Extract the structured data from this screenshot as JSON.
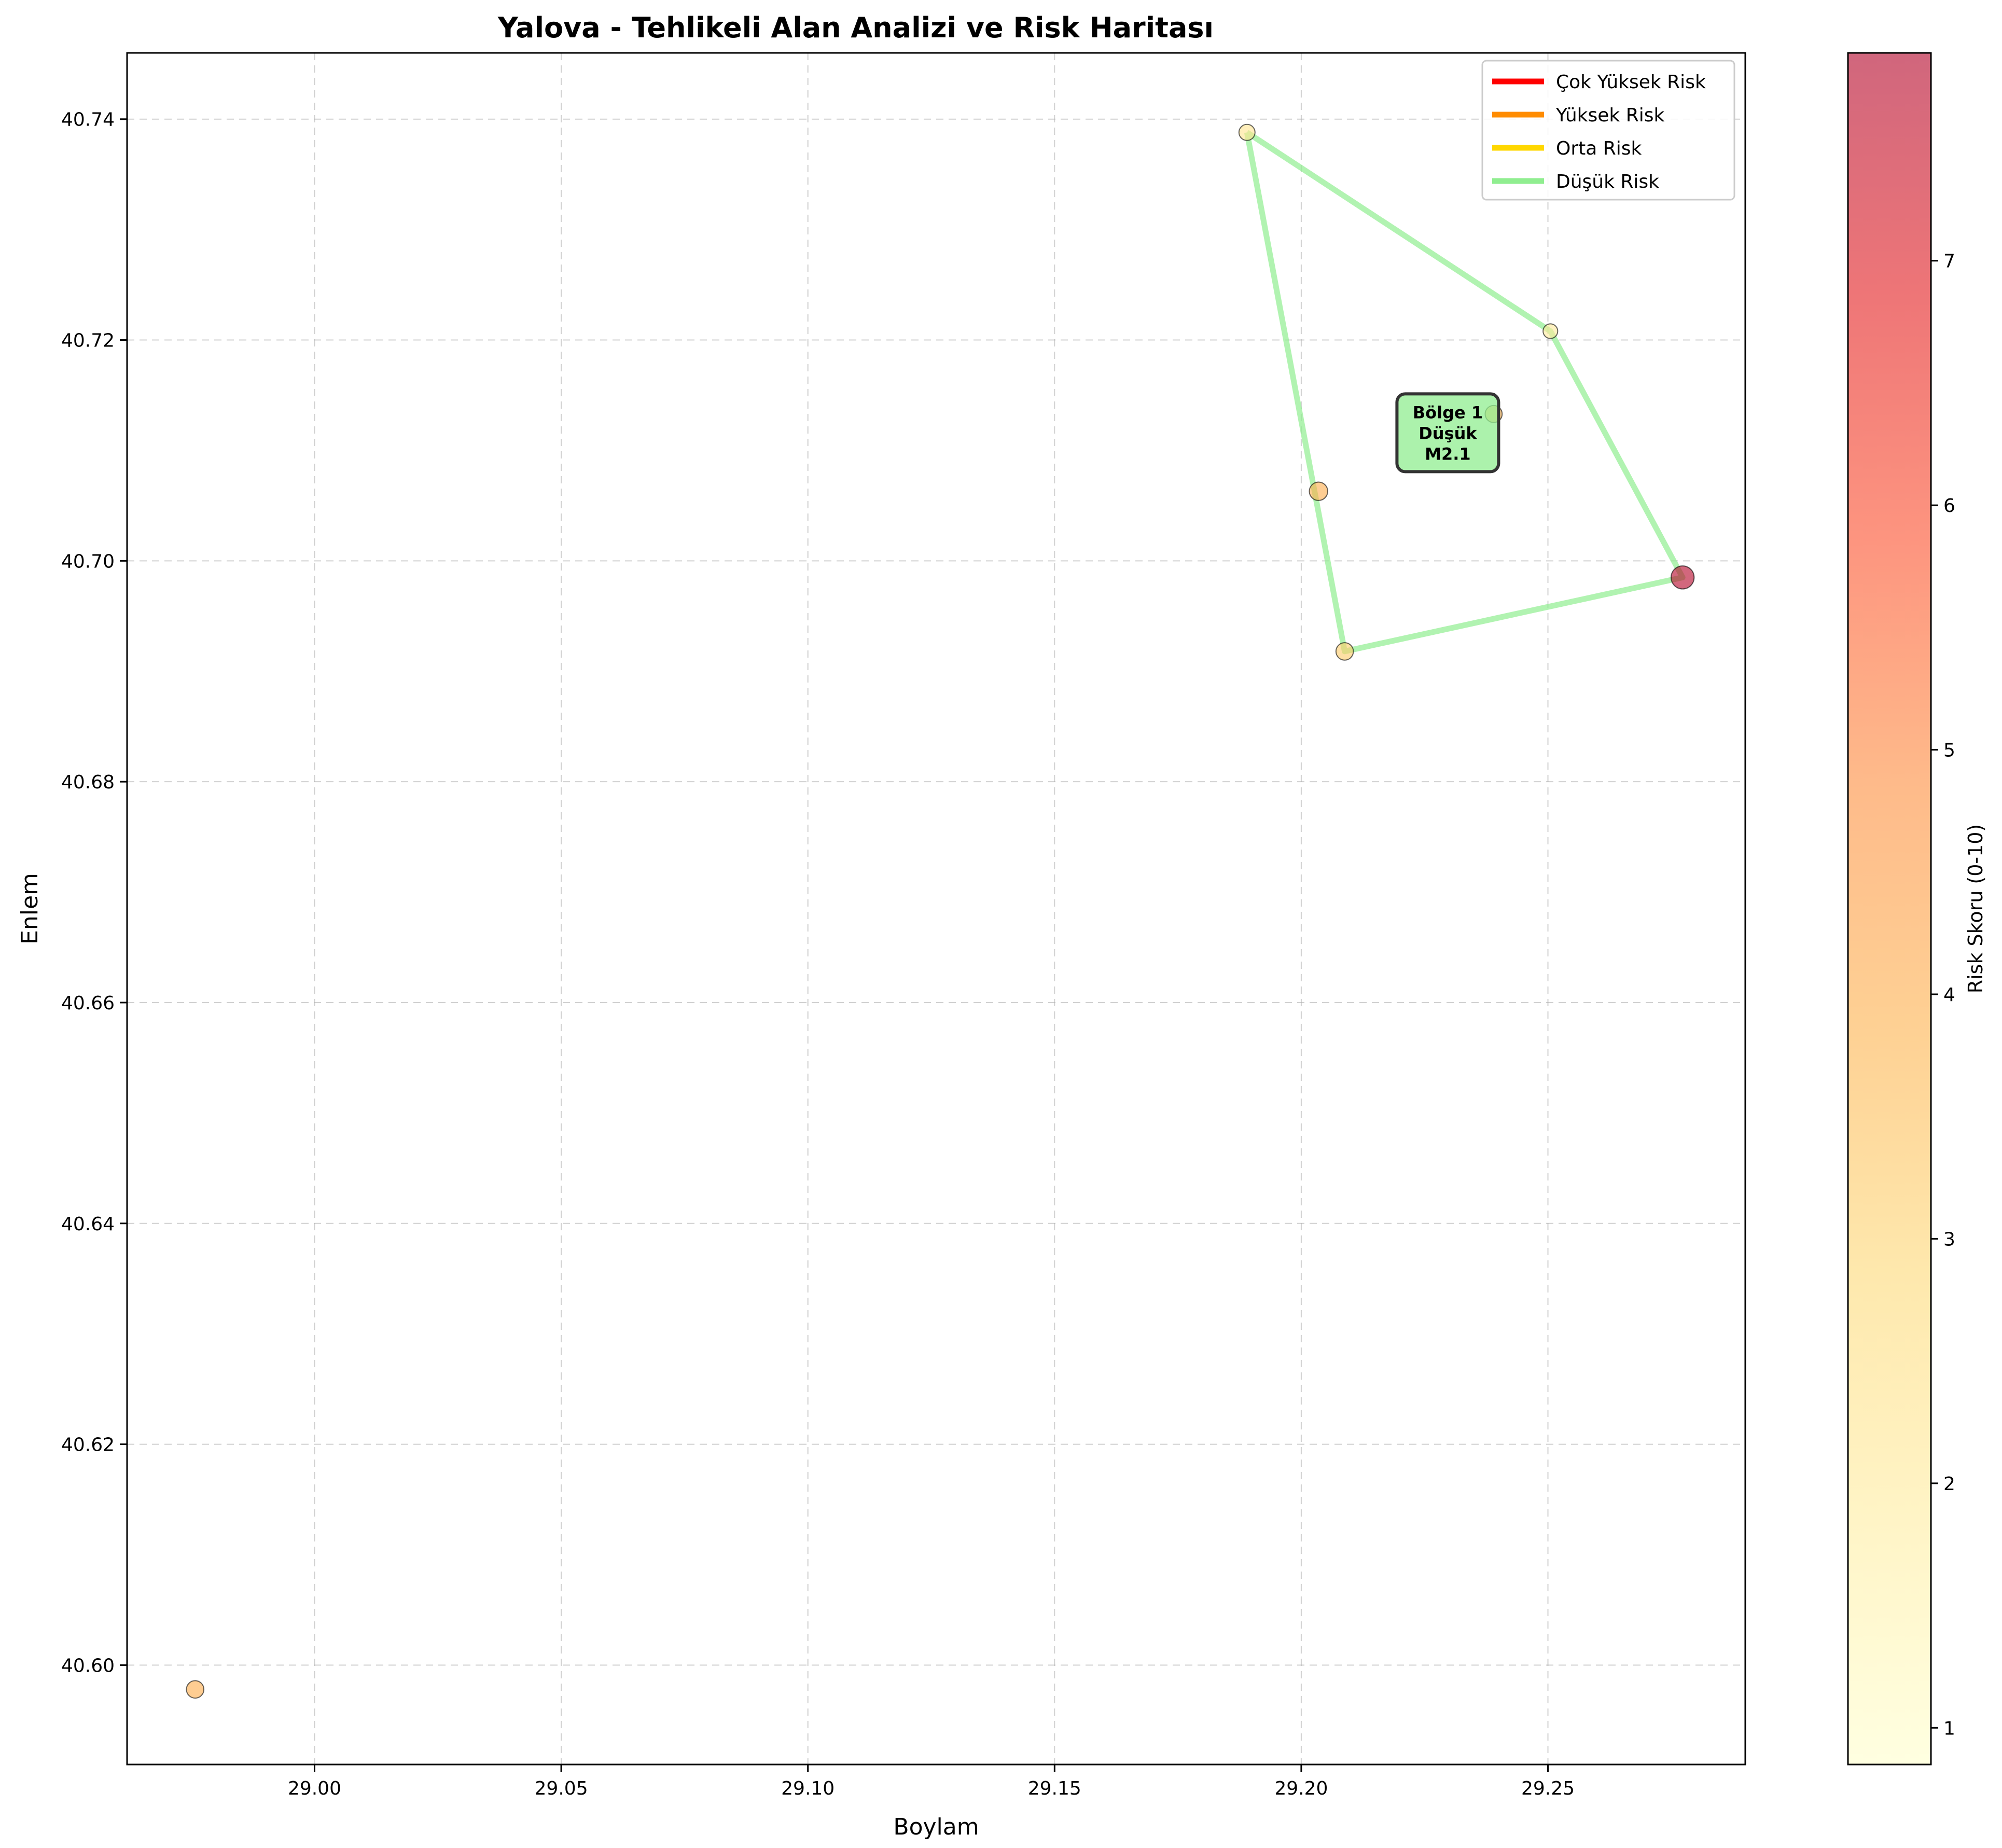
{
  "chart_data": {
    "type": "scatter",
    "title": "Yalova - Tehlikeli Alan Analizi ve Risk Haritası",
    "xlabel": "Boylam",
    "ylabel": "Enlem",
    "xlim": [
      28.962,
      29.29
    ],
    "ylim": [
      40.591,
      40.746
    ],
    "xticks": [
      29.0,
      29.05,
      29.1,
      29.15,
      29.2,
      29.25
    ],
    "xtick_labels": [
      "29.00",
      "29.05",
      "29.10",
      "29.15",
      "29.20",
      "29.25"
    ],
    "yticks": [
      40.6,
      40.62,
      40.64,
      40.66,
      40.68,
      40.7,
      40.72,
      40.74
    ],
    "ytick_labels": [
      "40.60",
      "40.62",
      "40.64",
      "40.66",
      "40.68",
      "40.70",
      "40.72",
      "40.74"
    ],
    "grid": true,
    "legend": {
      "placement": "top-right",
      "entries": [
        {
          "label": "Çok Yüksek Risk",
          "color": "#ff0000"
        },
        {
          "label": "Yüksek Risk",
          "color": "#ff8c00"
        },
        {
          "label": "Orta Risk",
          "color": "#ffd700"
        },
        {
          "label": "Düşük Risk",
          "color": "#90ee90"
        }
      ]
    },
    "points": [
      {
        "x": 29.189,
        "y": 40.7388,
        "risk": 2.3,
        "magnitude": 2.1
      },
      {
        "x": 29.2505,
        "y": 40.7208,
        "risk": 2.0,
        "magnitude": 1.8
      },
      {
        "x": 29.239,
        "y": 40.7133,
        "risk": 3.8,
        "magnitude": 2.3
      },
      {
        "x": 29.2035,
        "y": 40.7063,
        "risk": 4.0,
        "magnitude": 2.6
      },
      {
        "x": 29.2773,
        "y": 40.6985,
        "risk": 7.8,
        "magnitude": 3.6
      },
      {
        "x": 29.2088,
        "y": 40.6918,
        "risk": 3.2,
        "magnitude": 2.4
      },
      {
        "x": 28.9758,
        "y": 40.5978,
        "risk": 4.0,
        "magnitude": 2.4
      }
    ],
    "zones": [
      {
        "risk_level": "Düşük Risk",
        "color": "#90ee90",
        "polygon": [
          [
            29.189,
            40.7388
          ],
          [
            29.2505,
            40.7208
          ],
          [
            29.2773,
            40.6985
          ],
          [
            29.2088,
            40.6918
          ],
          [
            29.189,
            40.7388
          ]
        ],
        "label_lines": [
          "Bölge 1",
          "Düşük",
          "M2.1"
        ],
        "label_x": 29.2297,
        "label_y": 40.7116
      }
    ],
    "colorbar": {
      "label": "Risk Skoru (0-10)",
      "range": [
        0.85,
        7.85
      ],
      "ticks": [
        1,
        2,
        3,
        4,
        5,
        6,
        7
      ],
      "tick_labels": [
        "1",
        "2",
        "3",
        "4",
        "5",
        "6",
        "7"
      ],
      "colormap_stops": [
        "#ffffcc",
        "#ffeda0",
        "#fed976",
        "#feb24c",
        "#fd8d3c",
        "#fc4e2a",
        "#e31a1c",
        "#b10026"
      ]
    }
  }
}
